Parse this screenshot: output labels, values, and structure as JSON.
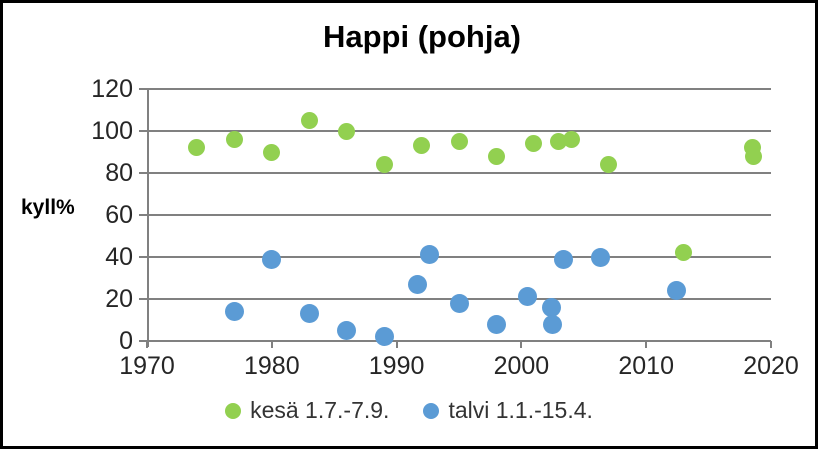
{
  "window": {
    "background_color": "#ffffff",
    "border_color": "#000000"
  },
  "chart_data": {
    "type": "scatter",
    "title": "Happi (pohja)",
    "xlabel": "",
    "ylabel": "kyll%",
    "xlim": [
      1970,
      2020
    ],
    "ylim": [
      0,
      120
    ],
    "x_ticks": [
      1970,
      1980,
      1990,
      2000,
      2010,
      2020
    ],
    "y_ticks": [
      0,
      20,
      40,
      60,
      80,
      100,
      120
    ],
    "grid": "horizontal gridlines on, gray",
    "legend_position": "bottom center",
    "marker": "circle",
    "series": [
      {
        "name": "kesä 1.7.-7.9.",
        "color": "#92D050",
        "points": [
          [
            1974,
            92
          ],
          [
            1977,
            96
          ],
          [
            1980,
            90
          ],
          [
            1983,
            105
          ],
          [
            1986,
            100
          ],
          [
            1989,
            84
          ],
          [
            1992,
            93
          ],
          [
            1995,
            95
          ],
          [
            1998,
            88
          ],
          [
            2001,
            94
          ],
          [
            2003,
            95
          ],
          [
            2004,
            96
          ],
          [
            2007,
            84
          ],
          [
            2013,
            42
          ],
          [
            2018.5,
            92
          ],
          [
            2018.6,
            88
          ]
        ]
      },
      {
        "name": "talvi 1.1.-15.4.",
        "color": "#5B9BD5",
        "points": [
          [
            1977,
            14
          ],
          [
            1980,
            39
          ],
          [
            1983,
            13
          ],
          [
            1986,
            5
          ],
          [
            1989,
            2
          ],
          [
            1991.7,
            27
          ],
          [
            1992.6,
            41
          ],
          [
            1995,
            18
          ],
          [
            1998,
            8
          ],
          [
            2000.5,
            21
          ],
          [
            2002.4,
            16
          ],
          [
            2002.5,
            8
          ],
          [
            2003.4,
            39
          ],
          [
            2006.3,
            40
          ],
          [
            2012.4,
            24
          ]
        ]
      }
    ]
  }
}
